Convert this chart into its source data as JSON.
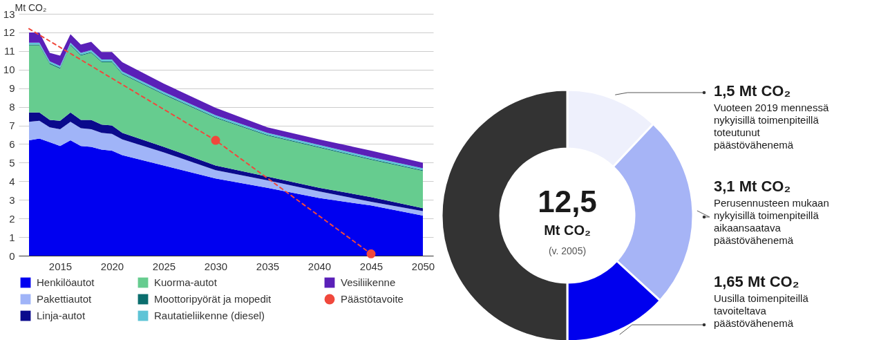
{
  "chart_data": [
    {
      "type": "area",
      "stacked": true,
      "ylabel": "Mt CO₂",
      "x": [
        2012,
        2013,
        2014,
        2015,
        2016,
        2017,
        2018,
        2019,
        2020,
        2021,
        2025,
        2030,
        2035,
        2040,
        2045,
        2050
      ],
      "xlim": [
        2011,
        2051
      ],
      "xticks": [
        2015,
        2020,
        2025,
        2030,
        2035,
        2040,
        2045,
        2050
      ],
      "ylim": [
        0,
        13
      ],
      "yticks": [
        0,
        1,
        2,
        3,
        4,
        5,
        6,
        7,
        8,
        9,
        10,
        11,
        12,
        13
      ],
      "grid": "y",
      "legend": "bottom",
      "series": [
        {
          "name": "Henkilöautot",
          "color": "#0000f0",
          "values": [
            6.2,
            6.3,
            6.1,
            5.9,
            6.2,
            5.9,
            5.85,
            5.7,
            5.65,
            5.4,
            4.85,
            4.15,
            3.65,
            3.1,
            2.7,
            2.15
          ]
        },
        {
          "name": "Pakettiautot",
          "color": "#a0b4f8",
          "values": [
            1.0,
            0.95,
            0.8,
            0.9,
            1.0,
            0.95,
            0.95,
            0.9,
            0.9,
            0.85,
            0.7,
            0.45,
            0.4,
            0.35,
            0.2,
            0.25
          ]
        },
        {
          "name": "Linja-autot",
          "color": "#0a0a8c",
          "values": [
            0.5,
            0.45,
            0.4,
            0.45,
            0.5,
            0.45,
            0.5,
            0.45,
            0.45,
            0.35,
            0.3,
            0.25,
            0.2,
            0.2,
            0.25,
            0.15
          ]
        },
        {
          "name": "Kuorma-autot",
          "color": "#66cc8f",
          "values": [
            3.6,
            3.6,
            3.0,
            2.8,
            3.6,
            3.45,
            3.6,
            3.35,
            3.4,
            3.15,
            2.8,
            2.55,
            2.2,
            2.15,
            2.0,
            2.0
          ]
        },
        {
          "name": "Moottoripyörät ja mopedit",
          "color": "#0b6e6e",
          "values": [
            0.05,
            0.05,
            0.05,
            0.05,
            0.05,
            0.05,
            0.05,
            0.05,
            0.05,
            0.05,
            0.05,
            0.05,
            0.05,
            0.05,
            0.05,
            0.05
          ]
        },
        {
          "name": "Rautatieliikenne (diesel)",
          "color": "#5ec4d6",
          "values": [
            0.1,
            0.1,
            0.1,
            0.1,
            0.1,
            0.1,
            0.1,
            0.1,
            0.1,
            0.1,
            0.1,
            0.1,
            0.1,
            0.1,
            0.1,
            0.1
          ]
        },
        {
          "name": "Vesiliikenne",
          "color": "#5a20b8",
          "values": [
            0.55,
            0.55,
            0.45,
            0.55,
            0.45,
            0.45,
            0.45,
            0.4,
            0.4,
            0.5,
            0.45,
            0.4,
            0.3,
            0.3,
            0.35,
            0.3
          ]
        },
        {
          "type": "line",
          "color": "#f0483c",
          "x": [
            2012,
            2030,
            2045
          ],
          "values": [
            12.2,
            6.2,
            0.1
          ],
          "line_style": "dashed",
          "marker": "none"
        },
        {
          "type": "scatter",
          "name": "Päästötavoite",
          "color": "#f0483c",
          "x": [
            2030,
            2045
          ],
          "values": [
            6.2,
            0.1
          ],
          "marker": "circle"
        }
      ]
    },
    {
      "type": "donut",
      "categories": [
        "Vuoteen 2019 mennessä\nnykyisillä toimenpiteillä\ntoteutunut\npäästövähenemä",
        "Perusennusteen mukaan\nnykyisillä toimenpiteillä\naikaansaatava\npäästövähenemä",
        "Uusilla toimenpiteillä\ntavoiteltava\npäästövähenemä",
        null
      ],
      "values": [
        1.5,
        3.1,
        1.65,
        6.25
      ],
      "colors": [
        "#eef0fc",
        "#a6b4f6",
        "#0000ee",
        "#333333"
      ],
      "value_labels": [
        "1,5 Mt CO₂",
        "3,1 Mt CO₂",
        "1,65 Mt CO₂",
        null
      ],
      "annotations": [
        "12,5",
        "Mt CO₂",
        "(v. 2005)"
      ]
    }
  ]
}
